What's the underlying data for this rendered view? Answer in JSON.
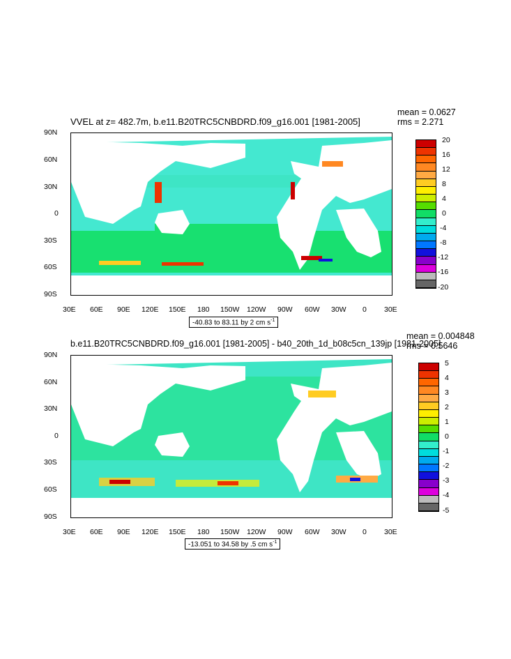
{
  "panels": [
    {
      "title": "VVEL at z= 482.7m, b.e11.B20TRC5CNBDRD.f09_g16.001 [1981-2005]",
      "mean": "mean = 0.0627",
      "rms": "rms = 2.271",
      "range_text": "-40.83 to 83.11 by 2 cm s",
      "range_sup": "-1",
      "colorbar_labels": [
        "20",
        "16",
        "12",
        "8",
        "4",
        "0",
        "-4",
        "-8",
        "-12",
        "-16",
        "-20"
      ]
    },
    {
      "title": "b.e11.B20TRC5CNBDRD.f09_g16.001 [1981-2005] - b40_20th_1d_b08c5cn_139jp [1981-2005]",
      "mean": "mean = 0.004848",
      "rms": "rms = 0.5646",
      "range_text": "-13.051 to 34.58 by .5 cm s",
      "range_sup": "-1",
      "colorbar_labels": [
        "5",
        "4",
        "3",
        "2",
        "1",
        "0",
        "-1",
        "-2",
        "-3",
        "-4",
        "-5"
      ]
    }
  ],
  "lat_labels": [
    "90N",
    "60N",
    "30N",
    "0",
    "30S",
    "60S",
    "90S"
  ],
  "lon_labels": [
    "30E",
    "60E",
    "90E",
    "120E",
    "150E",
    "180",
    "150W",
    "120W",
    "90W",
    "60W",
    "30W",
    "0",
    "30E"
  ],
  "colorbar_colors": [
    "#666666",
    "#bbbbbb",
    "#dd00dd",
    "#8800cc",
    "#1111dd",
    "#0077ff",
    "#00aaee",
    "#00dddd",
    "#33eecc",
    "#11dd66",
    "#55dd00",
    "#ccee00",
    "#ffee00",
    "#ffcc22",
    "#ffaa44",
    "#ff8822",
    "#ff6600",
    "#ee3300",
    "#cc0000"
  ],
  "colors": {
    "ocean": "#44e8d0",
    "ocean_alt": "#18e070",
    "land": "#ffffff"
  }
}
